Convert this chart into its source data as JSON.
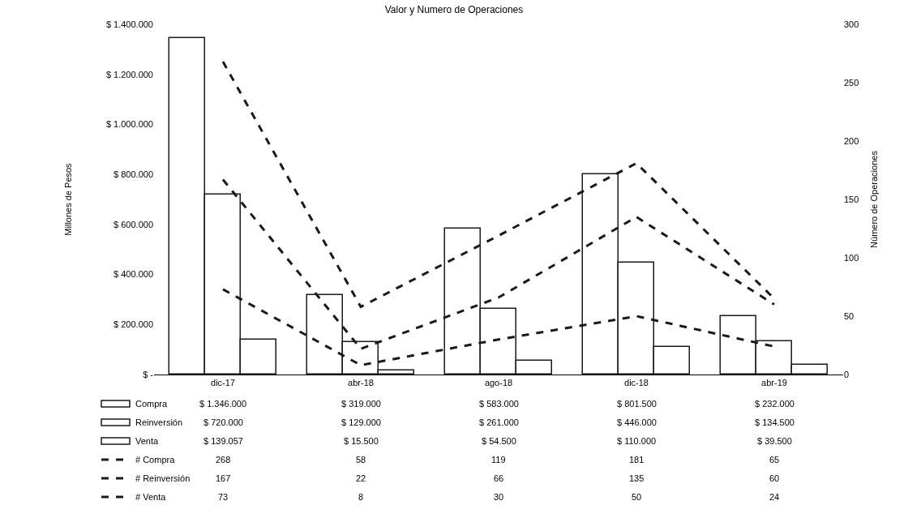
{
  "chart_data": {
    "type": "bar",
    "title": "Valor y Numero de Operaciones",
    "ylabel": "Millones de Pesos",
    "y2label": "Número de Operaciones",
    "categories": [
      "dic-17",
      "abr-18",
      "ago-18",
      "dic-18",
      "abr-19"
    ],
    "series": [
      {
        "name": "Compra",
        "color": "#ffffff",
        "values": [
          1346000,
          319000,
          583000,
          801500,
          232000
        ],
        "value_labels": [
          "$ 1.346.000",
          "$ 319.000",
          "$ 583.000",
          "$ 801.500",
          "$ 232.000"
        ]
      },
      {
        "name": "Reinversión",
        "color": "#ffffff",
        "values": [
          720000,
          129000,
          261000,
          446000,
          134500
        ],
        "value_labels": [
          "$ 720.000",
          "$ 129.000",
          "$ 261.000",
          "$ 446.000",
          "$ 134.500"
        ]
      },
      {
        "name": "Venta",
        "color": "#ffffff",
        "values": [
          139057,
          15500,
          54500,
          110000,
          39500
        ],
        "value_labels": [
          "$ 139.057",
          "$ 15.500",
          "$ 54.500",
          "$ 110.000",
          "$ 39.500"
        ]
      },
      {
        "name": "# Compra",
        "type": "line",
        "axis": "y2",
        "color": "#1a1a1a",
        "line_style": "dashed",
        "values": [
          268,
          58,
          119,
          181,
          65
        ],
        "value_labels": [
          "268",
          "58",
          "119",
          "181",
          "65"
        ]
      },
      {
        "name": "# Reinversión",
        "type": "line",
        "axis": "y2",
        "color": "#1a1a1a",
        "line_style": "dashed",
        "values": [
          167,
          22,
          66,
          135,
          60
        ],
        "value_labels": [
          "167",
          "22",
          "66",
          "135",
          "60"
        ]
      },
      {
        "name": "# Venta",
        "type": "line",
        "axis": "y2",
        "color": "#1a1a1a",
        "line_style": "dashed",
        "values": [
          73,
          8,
          30,
          50,
          24
        ],
        "value_labels": [
          "73",
          "8",
          "30",
          "50",
          "24"
        ]
      }
    ],
    "ylim": [
      0,
      1400000
    ],
    "yticks": [
      {
        "value": 0,
        "label": "$ -"
      },
      {
        "value": 200000,
        "label": "$ 200.000"
      },
      {
        "value": 400000,
        "label": "$ 400.000"
      },
      {
        "value": 600000,
        "label": "$ 600.000"
      },
      {
        "value": 800000,
        "label": "$ 800.000"
      },
      {
        "value": 1000000,
        "label": "$ 1.000.000"
      },
      {
        "value": 1200000,
        "label": "$ 1.200.000"
      },
      {
        "value": 1400000,
        "label": "$ 1.400.000"
      }
    ],
    "y2lim": [
      0,
      300
    ],
    "y2ticks": [
      0,
      50,
      100,
      150,
      200,
      250,
      300
    ],
    "legend": "bottom left",
    "marker": "none"
  }
}
